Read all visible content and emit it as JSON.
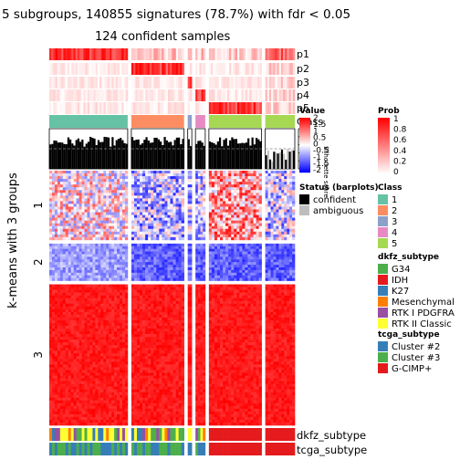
{
  "chart_data": {
    "type": "heatmap",
    "title": "5 subgroups, 140855 signatures (78.7%) with fdr < 0.05",
    "subtitle": "124 confident samples",
    "ylabel": "k-means with 3 groups",
    "row_groups": [
      "1",
      "2",
      "3"
    ],
    "row_group_fraction": [
      0.28,
      0.15,
      0.57
    ],
    "column_groups": [
      {
        "class": "1",
        "fraction": 0.345
      },
      {
        "class": "2",
        "fraction": 0.232
      },
      {
        "class": "3",
        "fraction": 0.018
      },
      {
        "class": "4",
        "fraction": 0.043
      },
      {
        "class": "5",
        "fraction": 0.232
      },
      {
        "class": "extra",
        "fraction": 0.13
      }
    ],
    "top_annotation_labels": [
      "p1",
      "p2",
      "p3",
      "p4",
      "p5",
      "Class"
    ],
    "silhouette_axis": {
      "ticks": [
        "1",
        "0.8",
        "0.6",
        "0.4",
        "0.2",
        "0"
      ],
      "label": "Silhouette score",
      "threshold": 0.5
    },
    "bottom_annotation_labels": [
      "dkfz_subtype",
      "tcga_subtype"
    ],
    "legends": {
      "value": {
        "title": "Value",
        "ticks": [
          "2",
          "1.5",
          "1",
          "0.5",
          "0",
          "-0.5",
          "-1",
          "-1.5",
          "-2"
        ]
      },
      "prob": {
        "title": "Prob",
        "ticks": [
          "1",
          "0.8",
          "0.6",
          "0.4",
          "0.2",
          "0"
        ]
      },
      "status": {
        "title": "Status (barplots)",
        "items": [
          {
            "label": "confident",
            "color": "#000000"
          },
          {
            "label": "ambiguous",
            "color": "#bebebe"
          }
        ]
      },
      "class": {
        "title": "Class",
        "items": [
          {
            "label": "1",
            "color": "#66c2a5"
          },
          {
            "label": "2",
            "color": "#fc8d62"
          },
          {
            "label": "3",
            "color": "#8da0cb"
          },
          {
            "label": "4",
            "color": "#e78ac3"
          },
          {
            "label": "5",
            "color": "#a6d854"
          }
        ]
      },
      "dkfz_subtype": {
        "title": "dkfz_subtype",
        "items": [
          {
            "label": "G34",
            "color": "#4daf4a"
          },
          {
            "label": "IDH",
            "color": "#e41a1c"
          },
          {
            "label": "K27",
            "color": "#377eb8"
          },
          {
            "label": "Mesenchymal",
            "color": "#ff7f00"
          },
          {
            "label": "RTK I PDGFRA",
            "color": "#984ea3"
          },
          {
            "label": "RTK II Classic",
            "color": "#ffff33"
          }
        ]
      },
      "tcga_subtype": {
        "title": "tcga_subtype",
        "items": [
          {
            "label": "Cluster #2",
            "color": "#377eb8"
          },
          {
            "label": "Cluster #3",
            "color": "#4daf4a"
          },
          {
            "label": "G-CIMP+",
            "color": "#e41a1c"
          }
        ]
      }
    }
  }
}
